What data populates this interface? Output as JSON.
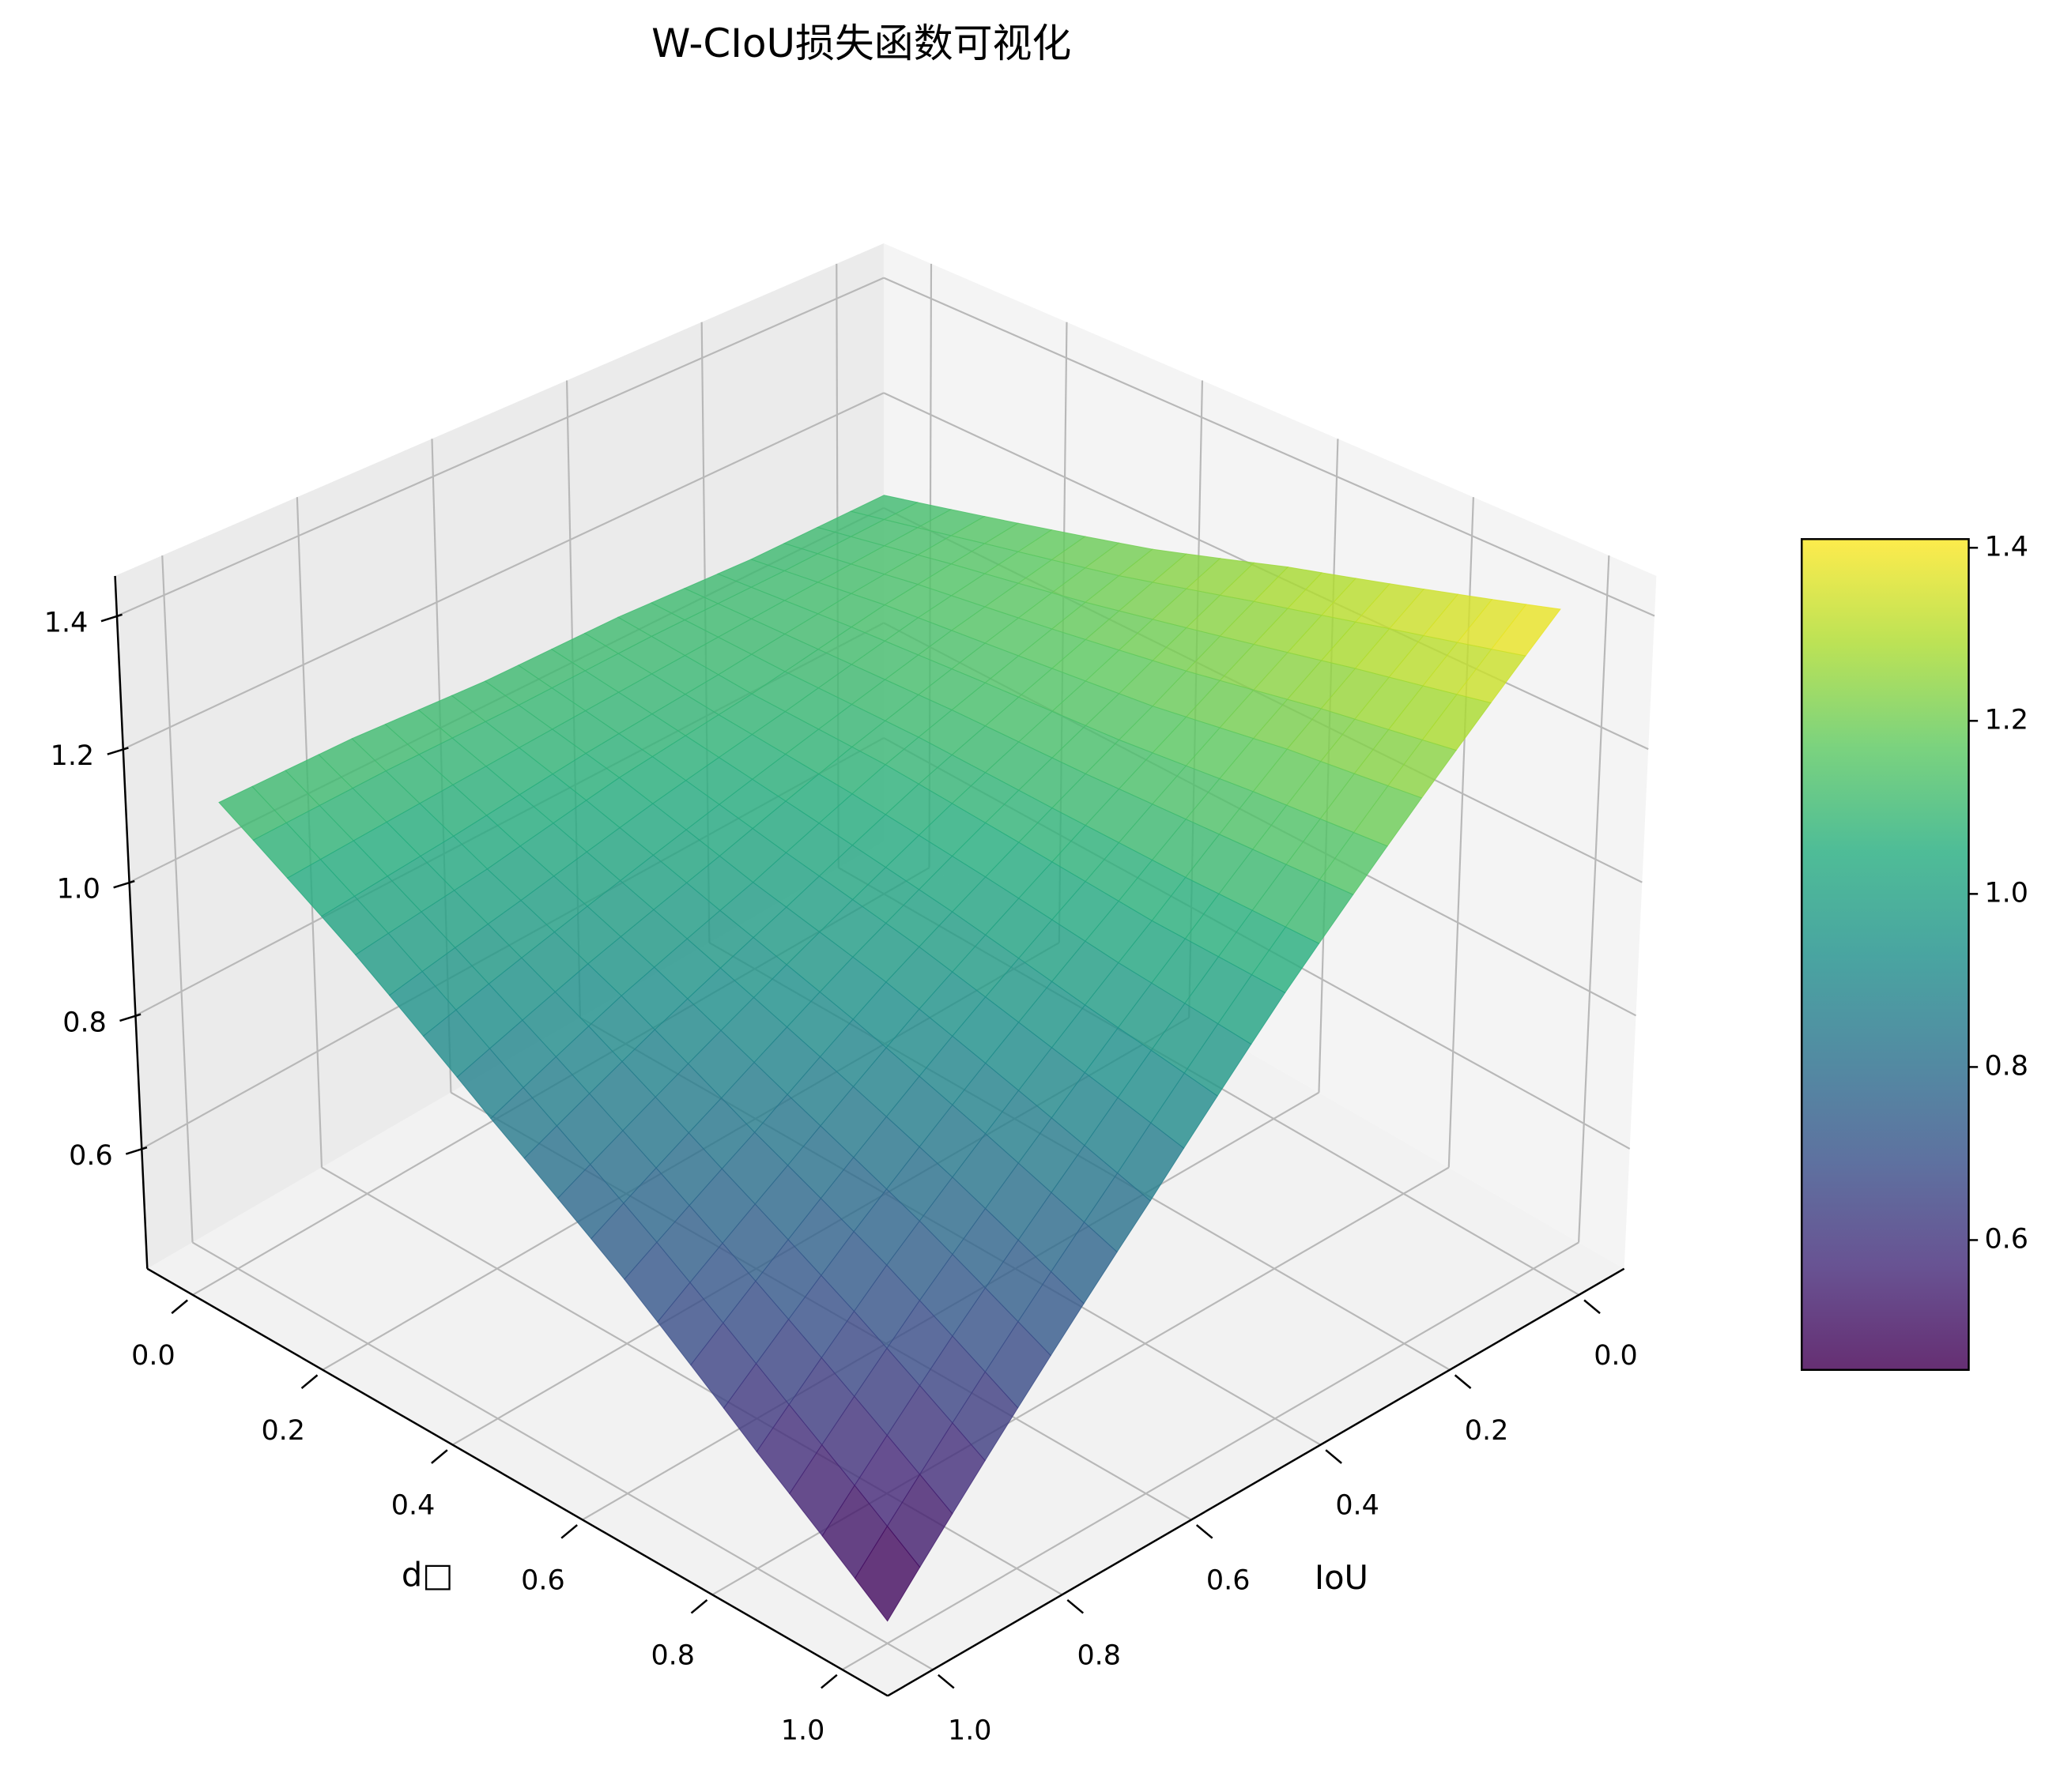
{
  "chart_data": {
    "type": "surface3d",
    "title": "W-CIoU损失函数可视化",
    "xlabel": "IoU",
    "ylabel": "d□",
    "colormap": "viridis",
    "x": [
      0,
      0.2,
      0.4,
      0.6,
      0.8,
      1
    ],
    "y": [
      0,
      0.2,
      0.4,
      0.6,
      0.8,
      1
    ],
    "z": [
      [
        1.1,
        1.1,
        1.11,
        1.11,
        1.12,
        1.12
      ],
      [
        1.16,
        1.13,
        1.09,
        1.06,
        1.02,
        0.99
      ],
      [
        1.22,
        1.15,
        1.08,
        1.0,
        0.93,
        0.85
      ],
      [
        1.29,
        1.17,
        1.06,
        0.95,
        0.83,
        0.72
      ],
      [
        1.35,
        1.2,
        1.04,
        0.89,
        0.74,
        0.58
      ],
      [
        1.41,
        1.22,
        1.03,
        0.83,
        0.64,
        0.45
      ]
    ],
    "xlim": [
      -0.07,
      1.07
    ],
    "ylim": [
      -0.07,
      1.07
    ],
    "zlim": [
      0.42,
      1.46
    ],
    "xticks": [
      {
        "value": 0,
        "label": "0.0"
      },
      0.2,
      0.4,
      0.6,
      0.8,
      {
        "value": 1,
        "label": "1.0"
      }
    ],
    "yticks": [
      {
        "value": 0,
        "label": "0.0"
      },
      0.2,
      0.4,
      0.6,
      0.8,
      {
        "value": 1,
        "label": "1.0"
      }
    ],
    "zticks": [
      0.6,
      0.8,
      {
        "value": 1,
        "label": "1.0"
      },
      1.2,
      1.4
    ],
    "colorbar": {
      "clim": [
        0.45,
        1.41
      ],
      "ticks": [
        0.6,
        0.8,
        {
          "value": 1,
          "label": "1.0"
        },
        1.2,
        1.4
      ]
    },
    "grid": true
  }
}
